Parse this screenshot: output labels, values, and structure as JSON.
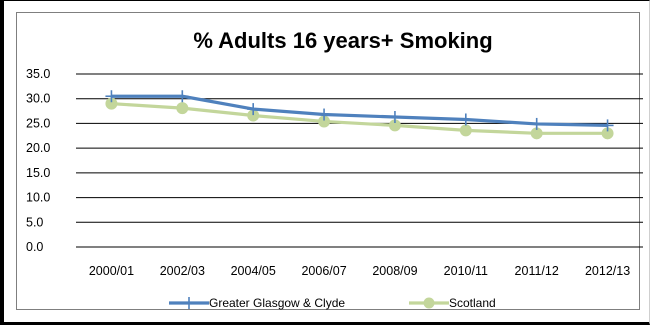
{
  "chart_data": {
    "type": "line",
    "title": "% Adults 16 years+ Smoking",
    "xlabel": "",
    "ylabel": "",
    "categories": [
      "2000/01",
      "2002/03",
      "2004/05",
      "2006/07",
      "2008/09",
      "2010/11",
      "2011/12",
      "2012/13"
    ],
    "ylim": [
      0,
      35
    ],
    "yticks": [
      "0.0",
      "5.0",
      "10.0",
      "15.0",
      "20.0",
      "25.0",
      "30.0",
      "35.0"
    ],
    "grid": true,
    "legend_position": "bottom",
    "series": [
      {
        "name": "Greater Glasgow & Clyde",
        "color": "#4f81bd",
        "marker": "plus",
        "values": [
          30.5,
          30.5,
          27.9,
          26.8,
          26.3,
          25.8,
          24.9,
          24.6
        ]
      },
      {
        "name": "Scotland",
        "color": "#c3d69b",
        "marker": "circle",
        "values": [
          29.0,
          28.1,
          26.6,
          25.4,
          24.6,
          23.6,
          23.0,
          23.0
        ]
      }
    ]
  }
}
